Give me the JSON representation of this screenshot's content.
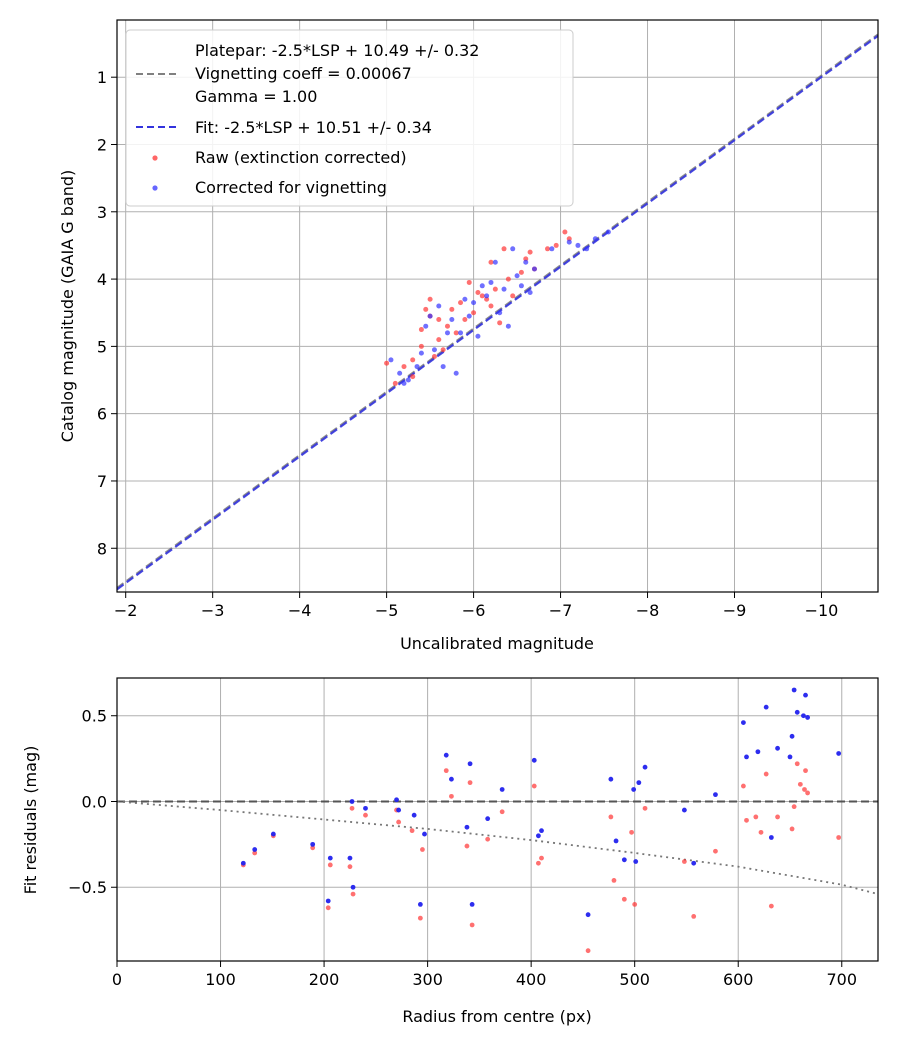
{
  "chart_data": [
    {
      "type": "scatter",
      "xlabel": "Uncalibrated magnitude",
      "ylabel": "Catalog magnitude (GAIA G band)",
      "xlim": [
        -1.9,
        -10.65
      ],
      "ylim": [
        8.65,
        0.15
      ],
      "x_inverted": true,
      "y_inverted": true,
      "grid": true,
      "legend_position": "top-left",
      "x_ticks": [
        -2,
        -3,
        -4,
        -5,
        -6,
        -7,
        -8,
        -9,
        -10
      ],
      "x_tick_labels": [
        "−2",
        "−3",
        "−4",
        "−5",
        "−6",
        "−7",
        "−8",
        "−9",
        "−10"
      ],
      "y_ticks": [
        1,
        2,
        3,
        4,
        5,
        6,
        7,
        8
      ],
      "y_tick_labels": [
        "1",
        "2",
        "3",
        "4",
        "5",
        "6",
        "7",
        "8"
      ],
      "series": [
        {
          "name": "Platepar: -2.5*LSP + 10.49 +/- 0.32",
          "name_line2": "Vignetting coeff = 0.00067",
          "name_line3": "Gamma = 1.00",
          "kind": "line",
          "style": "dashed",
          "color": "#808080",
          "x": [
            -1.9,
            -10.65
          ],
          "y": [
            8.59,
            0.365
          ]
        },
        {
          "name": "Fit: -2.5*LSP + 10.51 +/- 0.34",
          "kind": "line",
          "style": "dashed",
          "color": "#3333dd",
          "x": [
            -1.9,
            -10.65
          ],
          "y": [
            8.61,
            0.385
          ]
        },
        {
          "name": "Raw (extinction corrected)",
          "kind": "scatter",
          "color": "#ff3333",
          "points": [
            [
              -5.0,
              5.25
            ],
            [
              -5.1,
              5.55
            ],
            [
              -5.2,
              5.3
            ],
            [
              -5.3,
              5.45
            ],
            [
              -5.3,
              5.2
            ],
            [
              -5.4,
              5.0
            ],
            [
              -5.4,
              4.75
            ],
            [
              -5.45,
              4.45
            ],
            [
              -5.5,
              4.3
            ],
            [
              -5.5,
              4.55
            ],
            [
              -5.55,
              5.15
            ],
            [
              -5.6,
              4.9
            ],
            [
              -5.6,
              4.6
            ],
            [
              -5.65,
              5.05
            ],
            [
              -5.7,
              4.7
            ],
            [
              -5.75,
              4.45
            ],
            [
              -5.8,
              4.8
            ],
            [
              -5.85,
              4.35
            ],
            [
              -5.9,
              4.6
            ],
            [
              -5.95,
              4.05
            ],
            [
              -6.0,
              4.5
            ],
            [
              -6.05,
              4.2
            ],
            [
              -6.1,
              4.25
            ],
            [
              -6.15,
              4.3
            ],
            [
              -6.2,
              3.75
            ],
            [
              -6.2,
              4.4
            ],
            [
              -6.25,
              4.15
            ],
            [
              -6.3,
              4.65
            ],
            [
              -6.35,
              3.55
            ],
            [
              -6.4,
              4.0
            ],
            [
              -6.45,
              4.25
            ],
            [
              -6.55,
              3.9
            ],
            [
              -6.6,
              3.7
            ],
            [
              -6.65,
              3.6
            ],
            [
              -6.7,
              3.85
            ],
            [
              -6.85,
              3.55
            ],
            [
              -6.95,
              3.5
            ],
            [
              -7.05,
              3.3
            ],
            [
              -7.1,
              3.4
            ]
          ]
        },
        {
          "name": "Corrected for vignetting",
          "kind": "scatter",
          "color": "#3333ff",
          "points": [
            [
              -5.05,
              5.2
            ],
            [
              -5.15,
              5.4
            ],
            [
              -5.2,
              5.55
            ],
            [
              -5.25,
              5.5
            ],
            [
              -5.35,
              5.3
            ],
            [
              -5.4,
              5.1
            ],
            [
              -5.45,
              4.7
            ],
            [
              -5.5,
              4.55
            ],
            [
              -5.55,
              5.05
            ],
            [
              -5.6,
              4.4
            ],
            [
              -5.65,
              5.3
            ],
            [
              -5.7,
              4.8
            ],
            [
              -5.75,
              4.6
            ],
            [
              -5.8,
              5.4
            ],
            [
              -5.85,
              4.8
            ],
            [
              -5.9,
              4.3
            ],
            [
              -5.95,
              4.55
            ],
            [
              -6.0,
              4.35
            ],
            [
              -6.05,
              4.85
            ],
            [
              -6.1,
              4.1
            ],
            [
              -6.15,
              4.25
            ],
            [
              -6.2,
              4.05
            ],
            [
              -6.25,
              3.75
            ],
            [
              -6.3,
              4.5
            ],
            [
              -6.35,
              4.15
            ],
            [
              -6.4,
              4.7
            ],
            [
              -6.45,
              3.55
            ],
            [
              -6.5,
              3.95
            ],
            [
              -6.55,
              4.1
            ],
            [
              -6.6,
              3.75
            ],
            [
              -6.65,
              4.2
            ],
            [
              -6.7,
              3.85
            ],
            [
              -6.9,
              3.55
            ],
            [
              -7.1,
              3.45
            ],
            [
              -7.2,
              3.5
            ],
            [
              -7.3,
              3.55
            ],
            [
              -7.4,
              3.4
            ],
            [
              -7.55,
              3.3
            ]
          ]
        }
      ]
    },
    {
      "type": "scatter",
      "xlabel": "Radius from centre (px)",
      "ylabel": "Fit residuals (mag)",
      "xlim": [
        0,
        735
      ],
      "ylim": [
        -0.93,
        0.72
      ],
      "grid": true,
      "x_ticks": [
        0,
        100,
        200,
        300,
        400,
        500,
        600,
        700
      ],
      "x_tick_labels": [
        "0",
        "100",
        "200",
        "300",
        "400",
        "500",
        "600",
        "700"
      ],
      "y_ticks": [
        0.5,
        0.0,
        -0.5
      ],
      "y_tick_labels": [
        "0.5",
        "0.0",
        "−0.5"
      ],
      "reference_lines": [
        {
          "kind": "dashed",
          "color": "#555555",
          "x": [
            0,
            735
          ],
          "y": [
            0,
            0
          ]
        },
        {
          "kind": "dotted",
          "color": "#777777",
          "curve": "-0.00067*(r^2)/r_scale",
          "x": [
            0,
            100,
            200,
            300,
            400,
            500,
            600,
            700,
            735
          ],
          "y": [
            0,
            -0.05,
            -0.105,
            -0.16,
            -0.225,
            -0.3,
            -0.38,
            -0.485,
            -0.54
          ]
        }
      ],
      "series": [
        {
          "name": "Raw (extinction corrected)",
          "color": "#ff3333",
          "points": [
            [
              122,
              -0.37
            ],
            [
              133,
              -0.3
            ],
            [
              151,
              -0.2
            ],
            [
              189,
              -0.27
            ],
            [
              204,
              -0.62
            ],
            [
              206,
              -0.37
            ],
            [
              225,
              -0.38
            ],
            [
              227,
              -0.04
            ],
            [
              228,
              -0.54
            ],
            [
              240,
              -0.08
            ],
            [
              270,
              -0.05
            ],
            [
              272,
              -0.12
            ],
            [
              285,
              -0.17
            ],
            [
              293,
              -0.68
            ],
            [
              295,
              -0.28
            ],
            [
              318,
              0.18
            ],
            [
              323,
              0.03
            ],
            [
              338,
              -0.26
            ],
            [
              341,
              0.11
            ],
            [
              343,
              -0.72
            ],
            [
              358,
              -0.22
            ],
            [
              372,
              -0.06
            ],
            [
              403,
              0.09
            ],
            [
              407,
              -0.36
            ],
            [
              410,
              -0.33
            ],
            [
              455,
              -0.87
            ],
            [
              477,
              -0.09
            ],
            [
              480,
              -0.46
            ],
            [
              490,
              -0.57
            ],
            [
              497,
              -0.18
            ],
            [
              500,
              -0.6
            ],
            [
              510,
              -0.04
            ],
            [
              548,
              -0.35
            ],
            [
              557,
              -0.67
            ],
            [
              578,
              -0.29
            ],
            [
              605,
              0.09
            ],
            [
              608,
              -0.11
            ],
            [
              617,
              -0.09
            ],
            [
              622,
              -0.18
            ],
            [
              627,
              0.16
            ],
            [
              632,
              -0.61
            ],
            [
              638,
              -0.09
            ],
            [
              652,
              -0.16
            ],
            [
              654,
              -0.03
            ],
            [
              657,
              0.22
            ],
            [
              660,
              0.1
            ],
            [
              664,
              0.07
            ],
            [
              665,
              0.18
            ],
            [
              667,
              0.05
            ],
            [
              697,
              -0.21
            ]
          ]
        },
        {
          "name": "Corrected for vignetting",
          "color": "#2222ee",
          "points": [
            [
              122,
              -0.36
            ],
            [
              133,
              -0.28
            ],
            [
              151,
              -0.19
            ],
            [
              189,
              -0.25
            ],
            [
              204,
              -0.58
            ],
            [
              206,
              -0.33
            ],
            [
              225,
              -0.33
            ],
            [
              227,
              0.0
            ],
            [
              228,
              -0.5
            ],
            [
              240,
              -0.04
            ],
            [
              270,
              0.01
            ],
            [
              272,
              -0.05
            ],
            [
              287,
              -0.08
            ],
            [
              293,
              -0.6
            ],
            [
              297,
              -0.19
            ],
            [
              318,
              0.27
            ],
            [
              323,
              0.13
            ],
            [
              338,
              -0.15
            ],
            [
              341,
              0.22
            ],
            [
              343,
              -0.6
            ],
            [
              358,
              -0.1
            ],
            [
              372,
              0.07
            ],
            [
              403,
              0.24
            ],
            [
              407,
              -0.2
            ],
            [
              410,
              -0.17
            ],
            [
              455,
              -0.66
            ],
            [
              477,
              0.13
            ],
            [
              482,
              -0.23
            ],
            [
              490,
              -0.34
            ],
            [
              499,
              0.07
            ],
            [
              501,
              -0.35
            ],
            [
              504,
              0.11
            ],
            [
              510,
              0.2
            ],
            [
              548,
              -0.05
            ],
            [
              557,
              -0.36
            ],
            [
              578,
              0.04
            ],
            [
              605,
              0.46
            ],
            [
              608,
              0.26
            ],
            [
              619,
              0.29
            ],
            [
              627,
              0.55
            ],
            [
              632,
              -0.21
            ],
            [
              638,
              0.31
            ],
            [
              650,
              0.26
            ],
            [
              652,
              0.38
            ],
            [
              654,
              0.65
            ],
            [
              657,
              0.52
            ],
            [
              663,
              0.5
            ],
            [
              665,
              0.62
            ],
            [
              667,
              0.49
            ],
            [
              697,
              0.28
            ]
          ]
        }
      ]
    }
  ]
}
